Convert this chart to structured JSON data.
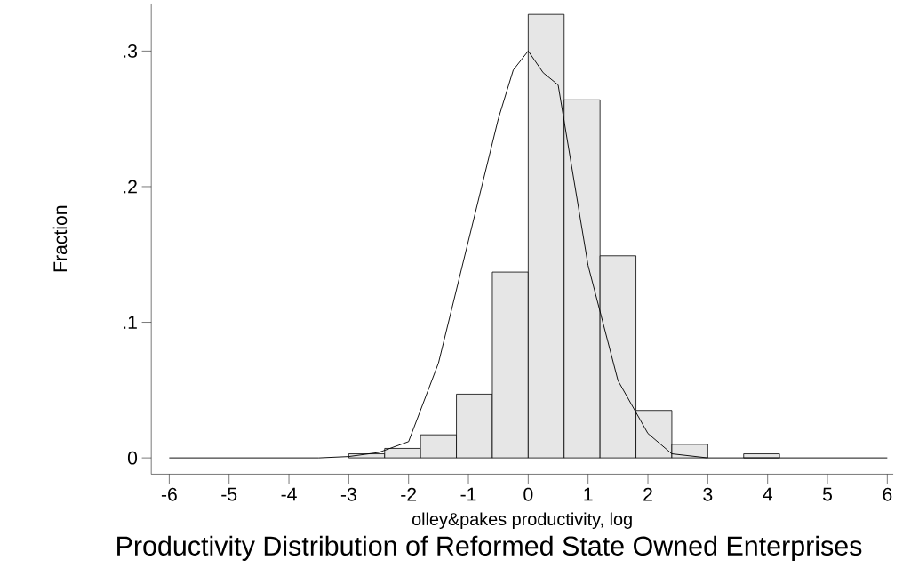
{
  "chart_data": {
    "type": "histogram",
    "title": "Productivity Distribution of Reformed State Owned Enterprises",
    "xlabel": "olley&pakes productivity, log",
    "ylabel": "Fraction",
    "bins": [
      -3,
      -2.4,
      -1.8,
      -1.2,
      -0.6,
      0,
      0.6,
      1.2,
      1.8,
      2.4,
      3,
      3.6,
      4.2
    ],
    "values": [
      0.003,
      0.007,
      0.017,
      0.047,
      0.137,
      0.327,
      0.264,
      0.149,
      0.035,
      0.01,
      0,
      0.003
    ],
    "color": "#e6e6e6",
    "series": [
      {
        "type": "line",
        "color": "#000000",
        "x": [
          -6,
          -3.5,
          -3,
          -2.5,
          -2,
          -1.5,
          -1,
          -0.5,
          -0.25,
          0,
          0.25,
          0.5,
          1,
          1.5,
          2,
          2.4,
          3,
          3.5,
          6
        ],
        "values": [
          0,
          0,
          0.001,
          0.004,
          0.012,
          0.07,
          0.16,
          0.25,
          0.286,
          0.3,
          0.284,
          0.275,
          0.142,
          0.057,
          0.018,
          0.003,
          0,
          0,
          0
        ]
      }
    ],
    "xlim": [
      -6.3,
      6.1
    ],
    "ylim": [
      -0.012,
      0.335
    ],
    "xticks": [
      -6,
      -5,
      -4,
      -3,
      -2,
      -1,
      0,
      1,
      2,
      3,
      4,
      5,
      6
    ],
    "yticks": [
      0,
      {
        "value": 0.1,
        "label": ".1"
      },
      {
        "value": 0.2,
        "label": ".2"
      },
      {
        "value": 0.3,
        "label": ".3"
      }
    ]
  }
}
